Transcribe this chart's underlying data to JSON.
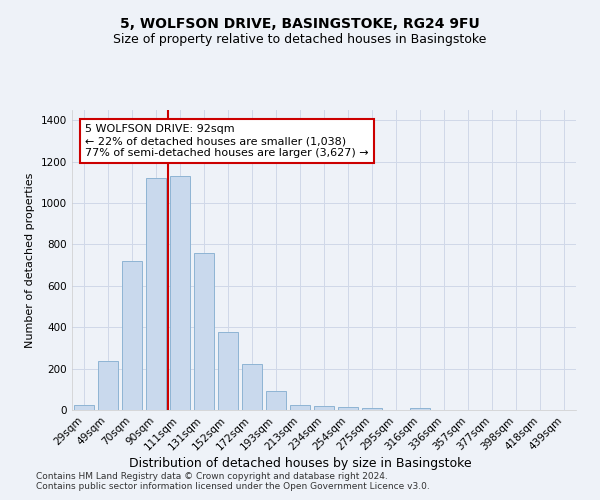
{
  "title": "5, WOLFSON DRIVE, BASINGSTOKE, RG24 9FU",
  "subtitle": "Size of property relative to detached houses in Basingstoke",
  "xlabel": "Distribution of detached houses by size in Basingstoke",
  "ylabel": "Number of detached properties",
  "bar_labels": [
    "29sqm",
    "49sqm",
    "70sqm",
    "90sqm",
    "111sqm",
    "131sqm",
    "152sqm",
    "172sqm",
    "193sqm",
    "213sqm",
    "234sqm",
    "254sqm",
    "275sqm",
    "295sqm",
    "316sqm",
    "336sqm",
    "357sqm",
    "377sqm",
    "398sqm",
    "418sqm",
    "439sqm"
  ],
  "bar_values": [
    25,
    235,
    720,
    1120,
    1130,
    760,
    375,
    220,
    90,
    25,
    20,
    15,
    10,
    0,
    10,
    0,
    0,
    0,
    0,
    0,
    0
  ],
  "bar_color": "#c9d9ed",
  "bar_edge_color": "#8eb4d4",
  "red_line_x": 3.5,
  "annotation_text": "5 WOLFSON DRIVE: 92sqm\n← 22% of detached houses are smaller (1,038)\n77% of semi-detached houses are larger (3,627) →",
  "annotation_box_color": "#ffffff",
  "annotation_box_edge": "#cc0000",
  "red_line_color": "#cc0000",
  "ylim": [
    0,
    1450
  ],
  "yticks": [
    0,
    200,
    400,
    600,
    800,
    1000,
    1200,
    1400
  ],
  "grid_color": "#d0d8e8",
  "background_color": "#eef2f8",
  "footnote1": "Contains HM Land Registry data © Crown copyright and database right 2024.",
  "footnote2": "Contains public sector information licensed under the Open Government Licence v3.0.",
  "title_fontsize": 10,
  "subtitle_fontsize": 9,
  "xlabel_fontsize": 9,
  "ylabel_fontsize": 8,
  "tick_fontsize": 7.5,
  "annotation_fontsize": 8,
  "footnote_fontsize": 6.5
}
